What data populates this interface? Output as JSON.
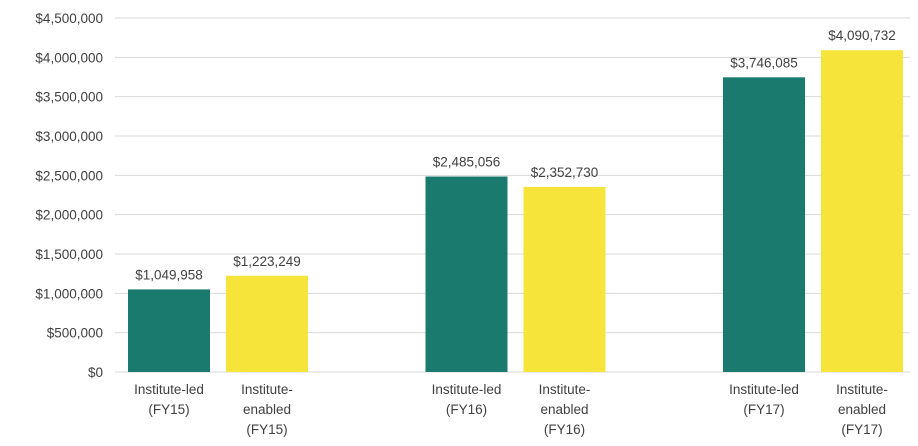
{
  "chart_data": {
    "type": "bar",
    "categories": [
      "Institute-led\n(FY15)",
      "Institute-\nenabled\n(FY15)",
      "Institute-led\n(FY16)",
      "Institute-\nenabled\n(FY16)",
      "Institute-led\n(FY17)",
      "Institute-\nenabled\n(FY17)"
    ],
    "values": [
      1049958,
      1223249,
      2485056,
      2352730,
      3746085,
      4090732
    ],
    "value_labels": [
      "$1,049,958",
      "$1,223,249",
      "$2,485,056",
      "$2,352,730",
      "$3,746,085",
      "$4,090,732"
    ],
    "colors": [
      "#1a7a6e",
      "#f7e43a",
      "#1a7a6e",
      "#f7e43a",
      "#1a7a6e",
      "#f7e43a"
    ],
    "ylim": [
      0,
      4500000
    ],
    "yticks": [
      {
        "value": 0,
        "label": "$0"
      },
      {
        "value": 500000,
        "label": "$500,000"
      },
      {
        "value": 1000000,
        "label": "$1,000,000"
      },
      {
        "value": 1500000,
        "label": "$1,500,000"
      },
      {
        "value": 2000000,
        "label": "$2,000,000"
      },
      {
        "value": 2500000,
        "label": "$2,500,000"
      },
      {
        "value": 3000000,
        "label": "$3,000,000"
      },
      {
        "value": 3500000,
        "label": "$3,500,000"
      },
      {
        "value": 4000000,
        "label": "$4,000,000"
      },
      {
        "value": 4500000,
        "label": "$4,500,000"
      }
    ],
    "grid": true
  }
}
